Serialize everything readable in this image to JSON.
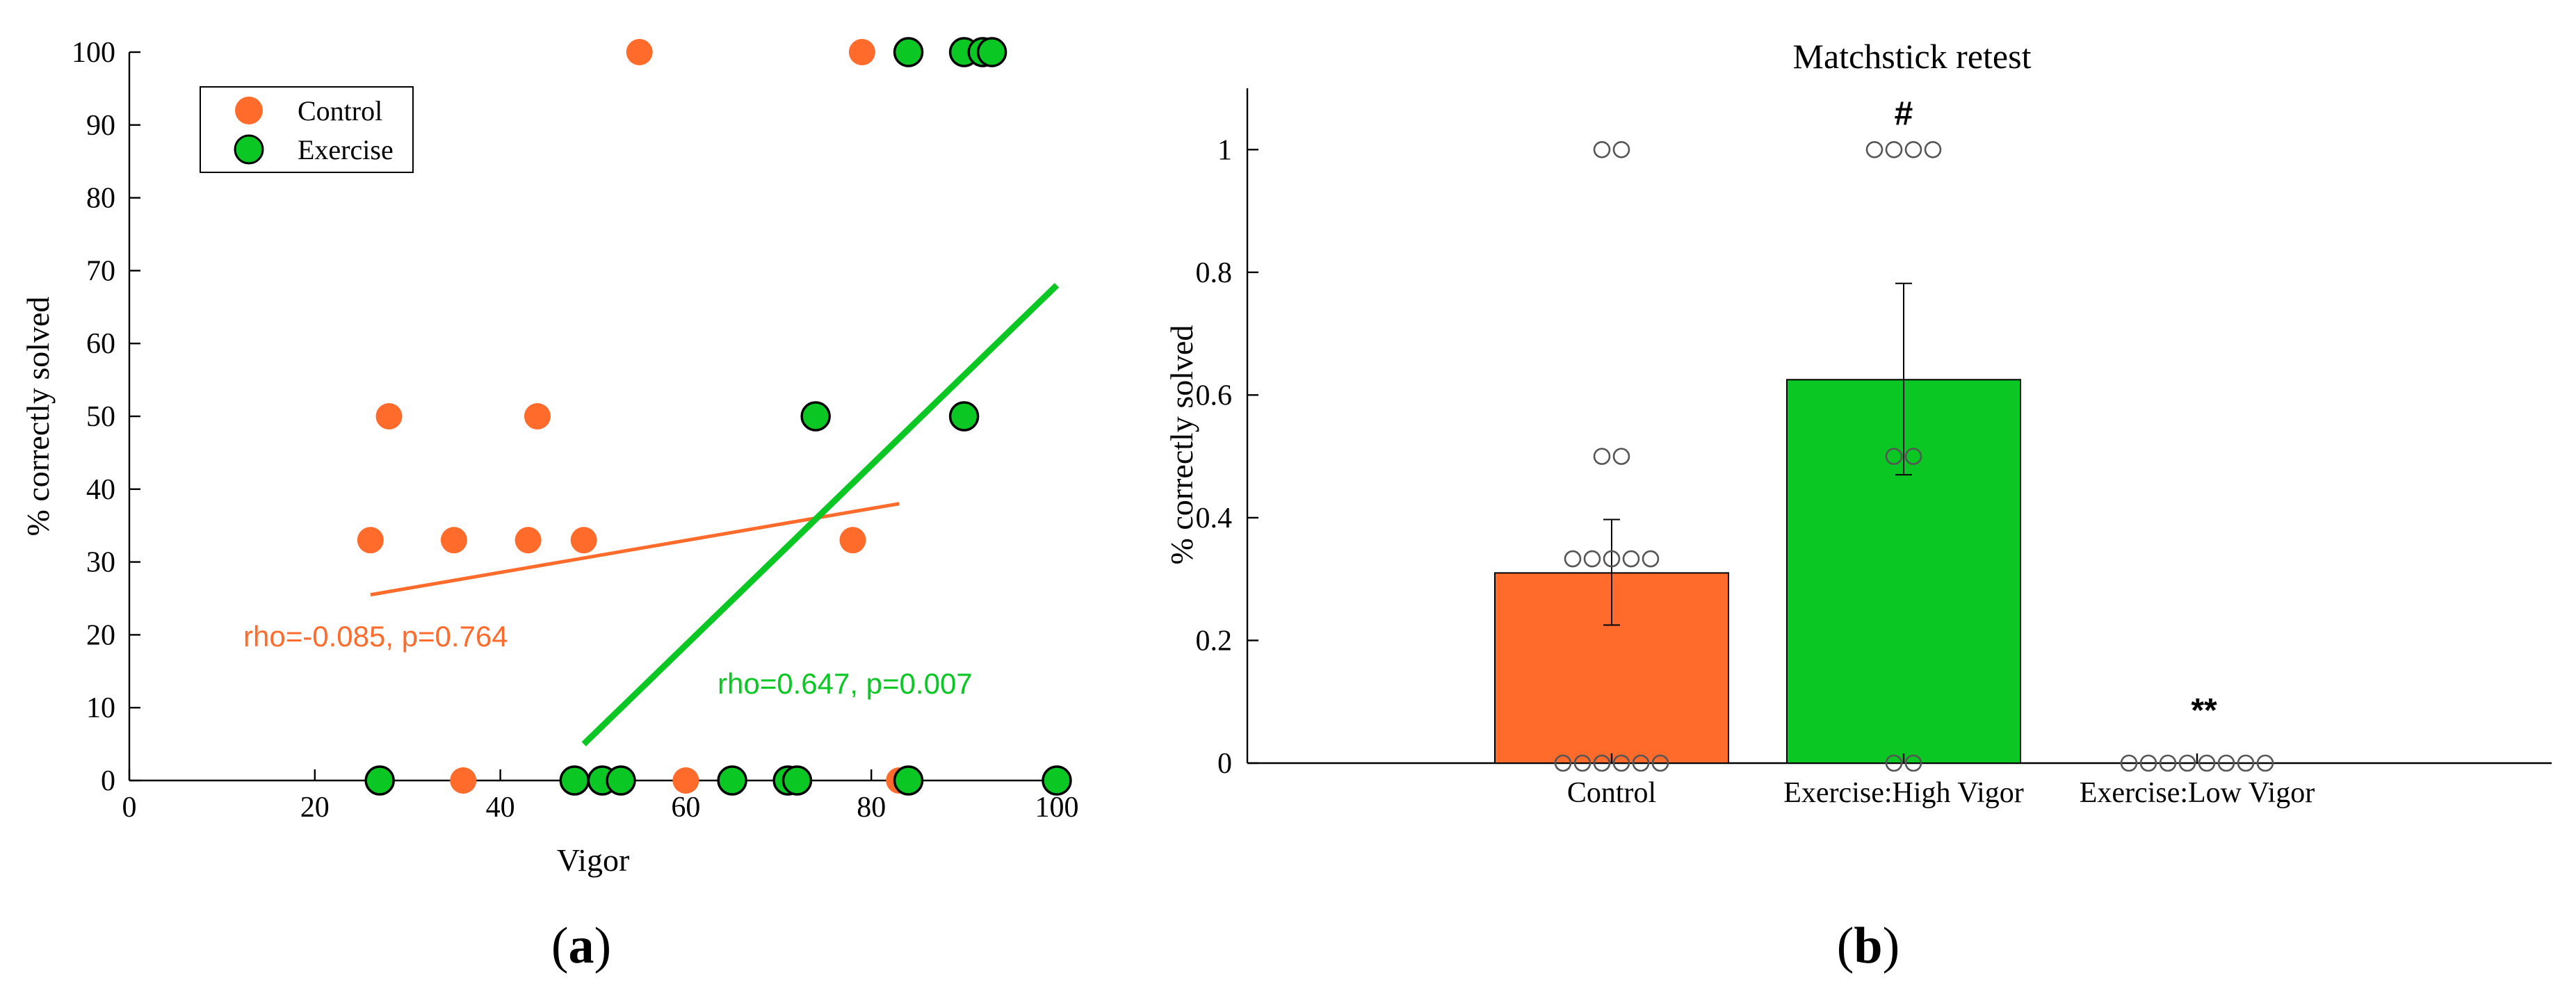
{
  "colors": {
    "control": "#ff6b2b",
    "exercise": "#0ac724",
    "axis": "#000000",
    "marker_edge": "#000000",
    "open_marker": "#555555"
  },
  "panel_a": {
    "label_open": "(",
    "label_letter": "a",
    "label_close": ")",
    "legend": {
      "items": [
        {
          "name": "Control",
          "color": "#ff6b2b",
          "edge": "none"
        },
        {
          "name": "Exercise",
          "color": "#0ac724",
          "edge": "#000000"
        }
      ]
    },
    "annotations": [
      {
        "text": "rho=-0.085, p=0.764",
        "series": "Control"
      },
      {
        "text": "rho=0.647, p=0.007",
        "series": "Exercise"
      }
    ]
  },
  "panel_b": {
    "label_open": "(",
    "label_letter": "b",
    "label_close": ")"
  },
  "chart_data": [
    {
      "type": "scatter",
      "title": "",
      "xlabel": "Vigor",
      "ylabel": "% correctly solved",
      "xlim": [
        0,
        100
      ],
      "ylim": [
        0,
        100
      ],
      "xticks": [
        0,
        20,
        40,
        60,
        80,
        100
      ],
      "yticks": [
        0,
        10,
        20,
        30,
        40,
        50,
        60,
        70,
        80,
        90,
        100
      ],
      "series": [
        {
          "name": "Control",
          "points": [
            [
              26,
              33
            ],
            [
              28,
              50
            ],
            [
              35,
              33
            ],
            [
              36,
              0
            ],
            [
              43,
              33
            ],
            [
              44,
              50
            ],
            [
              49,
              33
            ],
            [
              55,
              100
            ],
            [
              60,
              0
            ],
            [
              78,
              33
            ],
            [
              79,
              100
            ],
            [
              83,
              0
            ]
          ],
          "fit": {
            "x": [
              26,
              83
            ],
            "y": [
              25.5,
              38
            ]
          }
        },
        {
          "name": "Exercise",
          "points": [
            [
              27,
              0
            ],
            [
              48,
              0
            ],
            [
              51,
              0
            ],
            [
              53,
              0
            ],
            [
              65,
              0
            ],
            [
              71,
              0
            ],
            [
              72,
              0
            ],
            [
              74,
              50
            ],
            [
              84,
              100
            ],
            [
              84,
              0
            ],
            [
              90,
              100
            ],
            [
              90,
              50
            ],
            [
              92,
              100
            ],
            [
              93,
              100
            ],
            [
              100,
              0
            ]
          ],
          "fit": {
            "x": [
              49,
              100
            ],
            "y": [
              5,
              68
            ]
          }
        }
      ]
    },
    {
      "type": "bar",
      "title": "Matchstick retest",
      "xlabel": "",
      "ylabel": "% correctly solved",
      "ylim": [
        0,
        1.1
      ],
      "yticks": [
        0,
        0.2,
        0.4,
        0.6,
        0.8,
        1
      ],
      "ytick_labels": [
        "0",
        "0.2",
        "0.4",
        "0.6",
        "0.8",
        "1"
      ],
      "categories": [
        "Control",
        "Exercise:High Vigor",
        "Exercise:Low Vigor"
      ],
      "values": [
        0.31,
        0.625,
        0.0
      ],
      "error": [
        {
          "low": 0.225,
          "high": 0.397
        },
        {
          "low": 0.47,
          "high": 0.782
        },
        {
          "low": 0.0,
          "high": 0.0
        }
      ],
      "bar_colors": [
        "#ff6b2b",
        "#0ac724",
        "#ffffff"
      ],
      "significance": [
        "",
        "#",
        "**"
      ],
      "individual_points": [
        [
          1,
          1,
          0.5,
          0.5,
          0.333,
          0.333,
          0.333,
          0.333,
          0.333,
          0,
          0,
          0,
          0,
          0,
          0
        ],
        [
          1,
          1,
          1,
          1,
          0.5,
          0.5,
          0,
          0
        ],
        [
          0,
          0,
          0,
          0,
          0,
          0,
          0,
          0
        ]
      ]
    }
  ]
}
